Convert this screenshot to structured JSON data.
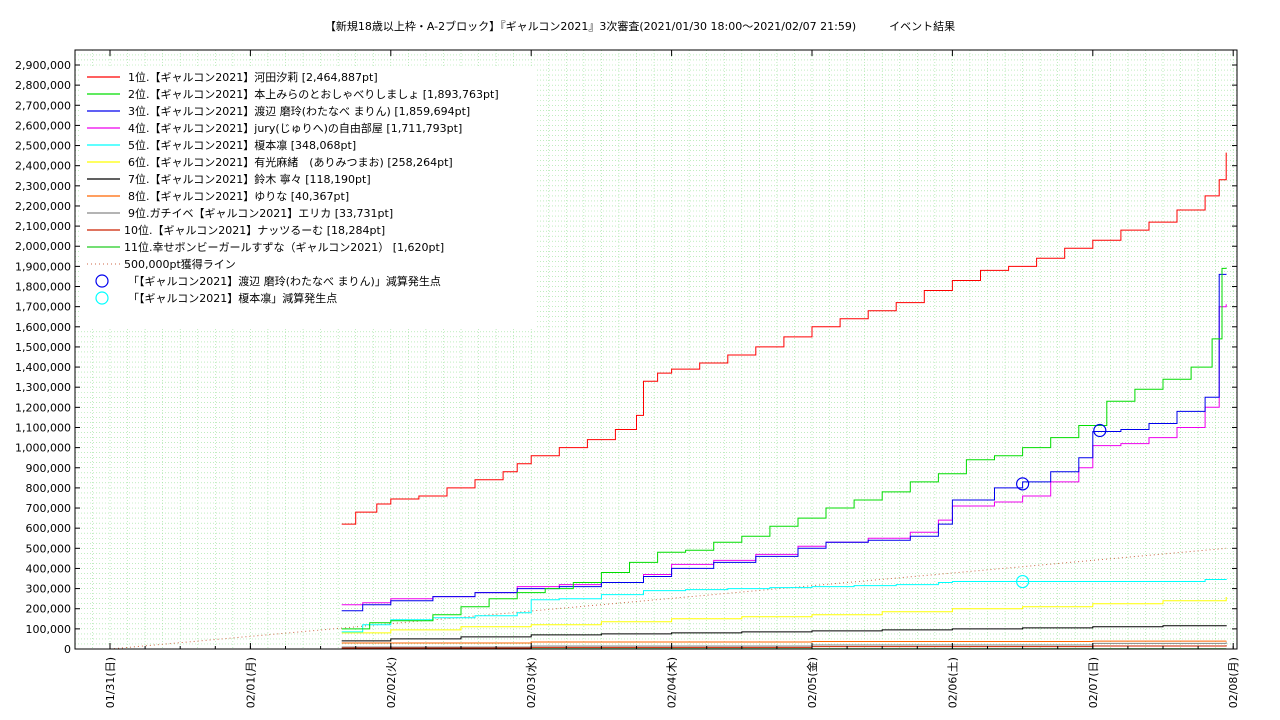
{
  "chart_data": {
    "type": "line",
    "title": "【新規18歳以上枠・A-2ブロック】『ギャルコン2021』3次審査(2021/01/30 18:00〜2021/02/07 21:59)　　　イベント結果",
    "xlabel": "",
    "ylabel": "",
    "x_ticks": [
      "01/31(日)",
      "02/01(月)",
      "02/02(火)",
      "02/03(水)",
      "02/04(木)",
      "02/05(金)",
      "02/06(土)",
      "02/07(日)",
      "02/08(月)"
    ],
    "y_ticks": [
      "0",
      "100,000",
      "200,000",
      "300,000",
      "400,000",
      "500,000",
      "600,000",
      "700,000",
      "800,000",
      "900,000",
      "1,000,000",
      "1,100,000",
      "1,200,000",
      "1,300,000",
      "1,400,000",
      "1,500,000",
      "1,600,000",
      "1,700,000",
      "1,800,000",
      "1,900,000",
      "2,000,000",
      "2,100,000",
      "2,200,000",
      "2,300,000",
      "2,400,000",
      "2,500,000",
      "2,600,000",
      "2,700,000",
      "2,800,000",
      "2,900,000"
    ],
    "x_range": [
      "01/30 18:00",
      "02/08 00:00"
    ],
    "ylim": [
      0,
      2900000
    ],
    "grid": true,
    "legend_position": "top-left",
    "series": [
      {
        "name": "1位.【ギャルコン2021】河田汐莉 [2,464,887pt]",
        "color": "#ff0000",
        "x": [
          1.65,
          1.75,
          1.9,
          2.0,
          2.2,
          2.4,
          2.6,
          2.8,
          2.9,
          3.0,
          3.2,
          3.4,
          3.6,
          3.75,
          3.8,
          3.9,
          4.0,
          4.2,
          4.4,
          4.6,
          4.8,
          5.0,
          5.2,
          5.4,
          5.6,
          5.8,
          6.0,
          6.2,
          6.4,
          6.6,
          6.8,
          7.0,
          7.2,
          7.4,
          7.6,
          7.8,
          7.9,
          7.95
        ],
        "values": [
          620000,
          680000,
          720000,
          745000,
          760000,
          800000,
          840000,
          880000,
          920000,
          960000,
          1000000,
          1040000,
          1090000,
          1160000,
          1330000,
          1370000,
          1390000,
          1420000,
          1460000,
          1500000,
          1550000,
          1600000,
          1640000,
          1680000,
          1720000,
          1780000,
          1830000,
          1880000,
          1900000,
          1940000,
          1990000,
          2030000,
          2080000,
          2120000,
          2180000,
          2250000,
          2330000,
          2464887
        ]
      },
      {
        "name": "2位.【ギャルコン2021】本上みらのとおしゃべりしましょ [1,893,763pt]",
        "color": "#00dd00",
        "x": [
          1.65,
          1.85,
          2.0,
          2.3,
          2.5,
          2.7,
          2.9,
          3.1,
          3.3,
          3.5,
          3.7,
          3.9,
          4.1,
          4.3,
          4.5,
          4.7,
          4.9,
          5.1,
          5.3,
          5.5,
          5.7,
          5.9,
          6.1,
          6.3,
          6.5,
          6.7,
          6.9,
          7.1,
          7.3,
          7.5,
          7.7,
          7.85,
          7.92,
          7.95
        ],
        "values": [
          100000,
          130000,
          140000,
          170000,
          210000,
          250000,
          280000,
          300000,
          330000,
          380000,
          430000,
          480000,
          490000,
          530000,
          560000,
          610000,
          650000,
          700000,
          740000,
          780000,
          830000,
          870000,
          940000,
          960000,
          1000000,
          1050000,
          1110000,
          1230000,
          1290000,
          1340000,
          1400000,
          1540000,
          1890000,
          1893763
        ]
      },
      {
        "name": "3位.【ギャルコン2021】渡辺 磨玲(わたなべ まりん) [1,859,694pt]",
        "color": "#0000ee",
        "x": [
          1.65,
          1.8,
          2.0,
          2.3,
          2.6,
          2.9,
          3.2,
          3.5,
          3.8,
          4.0,
          4.3,
          4.6,
          4.9,
          5.1,
          5.4,
          5.7,
          5.9,
          6.0,
          6.3,
          6.5,
          6.7,
          6.9,
          7.0,
          7.2,
          7.4,
          7.6,
          7.8,
          7.9,
          7.95
        ],
        "values": [
          190000,
          220000,
          240000,
          260000,
          280000,
          300000,
          310000,
          330000,
          360000,
          400000,
          430000,
          460000,
          500000,
          530000,
          540000,
          560000,
          620000,
          740000,
          800000,
          830000,
          880000,
          950000,
          1080000,
          1090000,
          1120000,
          1180000,
          1250000,
          1860000,
          1859694
        ]
      },
      {
        "name": "4位.【ギャルコン2021】jury(じゅりへ)の自由部屋 [1,711,793pt]",
        "color": "#ee00ee",
        "x": [
          1.65,
          1.8,
          2.0,
          2.3,
          2.6,
          2.9,
          3.2,
          3.5,
          3.8,
          4.0,
          4.3,
          4.6,
          4.9,
          5.1,
          5.4,
          5.7,
          5.9,
          6.0,
          6.3,
          6.5,
          6.7,
          6.9,
          7.0,
          7.2,
          7.4,
          7.6,
          7.8,
          7.9,
          7.95
        ],
        "values": [
          220000,
          230000,
          250000,
          260000,
          280000,
          310000,
          320000,
          330000,
          370000,
          420000,
          440000,
          470000,
          510000,
          530000,
          550000,
          580000,
          640000,
          710000,
          730000,
          760000,
          830000,
          900000,
          1010000,
          1020000,
          1050000,
          1100000,
          1200000,
          1700000,
          1711793
        ]
      },
      {
        "name": "5位.【ギャルコン2021】榎本凛 [348,068pt]",
        "color": "#00ffff",
        "x": [
          1.65,
          1.8,
          2.0,
          2.3,
          2.6,
          2.9,
          3.0,
          3.2,
          3.5,
          3.8,
          4.1,
          4.4,
          4.7,
          5.0,
          5.3,
          5.6,
          5.9,
          6.0,
          6.3,
          6.6,
          6.9,
          7.2,
          7.5,
          7.8,
          7.95
        ],
        "values": [
          85000,
          120000,
          145000,
          155000,
          165000,
          180000,
          245000,
          250000,
          270000,
          290000,
          295000,
          300000,
          305000,
          310000,
          315000,
          320000,
          330000,
          335000,
          335000,
          335000,
          335000,
          335000,
          335000,
          345000,
          348068
        ]
      },
      {
        "name": "6位.【ギャルコン2021】有光麻緒　(ありみつまお) [258,264pt]",
        "color": "#ffff00",
        "x": [
          1.65,
          2.0,
          2.5,
          3.0,
          3.5,
          4.0,
          4.5,
          5.0,
          5.5,
          6.0,
          6.5,
          7.0,
          7.5,
          7.95
        ],
        "values": [
          80000,
          95000,
          110000,
          120000,
          135000,
          150000,
          160000,
          170000,
          185000,
          200000,
          210000,
          225000,
          240000,
          258264
        ]
      },
      {
        "name": "7位.【ギャルコン2021】鈴木 寧々 [118,190pt]",
        "color": "#000000",
        "x": [
          1.65,
          2.0,
          2.5,
          3.0,
          3.5,
          4.0,
          4.5,
          5.0,
          5.5,
          6.0,
          6.5,
          7.0,
          7.5,
          7.95
        ],
        "values": [
          40000,
          50000,
          60000,
          70000,
          75000,
          80000,
          85000,
          90000,
          95000,
          100000,
          105000,
          110000,
          115000,
          118190
        ]
      },
      {
        "name": "8位.【ギャルコン2021】ゆりな [40,367pt]",
        "color": "#ff6600",
        "x": [
          1.65,
          3.0,
          5.0,
          7.0,
          7.95
        ],
        "values": [
          30000,
          35000,
          37000,
          39000,
          40367
        ]
      },
      {
        "name": "9位.ガチイベ【ギャルコン2021】エリカ [33,731pt]",
        "color": "#888888",
        "x": [
          1.65,
          3.0,
          5.0,
          7.0,
          7.95
        ],
        "values": [
          10000,
          15000,
          20000,
          28000,
          33731
        ]
      },
      {
        "name": "10位.【ギャルコン2021】ナッツるーむ [18,284pt]",
        "color": "#cc2200",
        "x": [
          1.65,
          3.0,
          5.0,
          7.0,
          7.95
        ],
        "values": [
          5000,
          8000,
          12000,
          15000,
          18284
        ]
      },
      {
        "name": "11位.幸せボンビーガールすずな（ギャルコン2021） [1,620pt]",
        "color": "#22cc22",
        "x": [
          1.65,
          7.95
        ],
        "values": [
          1000,
          1620
        ]
      }
    ],
    "reference_line": {
      "name": "500,000pt獲得ライン",
      "color": "#cc6644",
      "x": [
        0.0,
        7.95
      ],
      "values": [
        0,
        500000
      ]
    },
    "markers": [
      {
        "name": "「【ギャルコン2021】渡辺 磨玲(わたなべ まりん)」減算発生点",
        "color": "#0000ee",
        "points": [
          {
            "x": 6.5,
            "y": 820000
          },
          {
            "x": 7.05,
            "y": 1085000
          }
        ]
      },
      {
        "name": "「【ギャルコン2021】榎本凛」減算発生点",
        "color": "#00ffff",
        "points": [
          {
            "x": 6.5,
            "y": 335000
          }
        ]
      }
    ]
  }
}
